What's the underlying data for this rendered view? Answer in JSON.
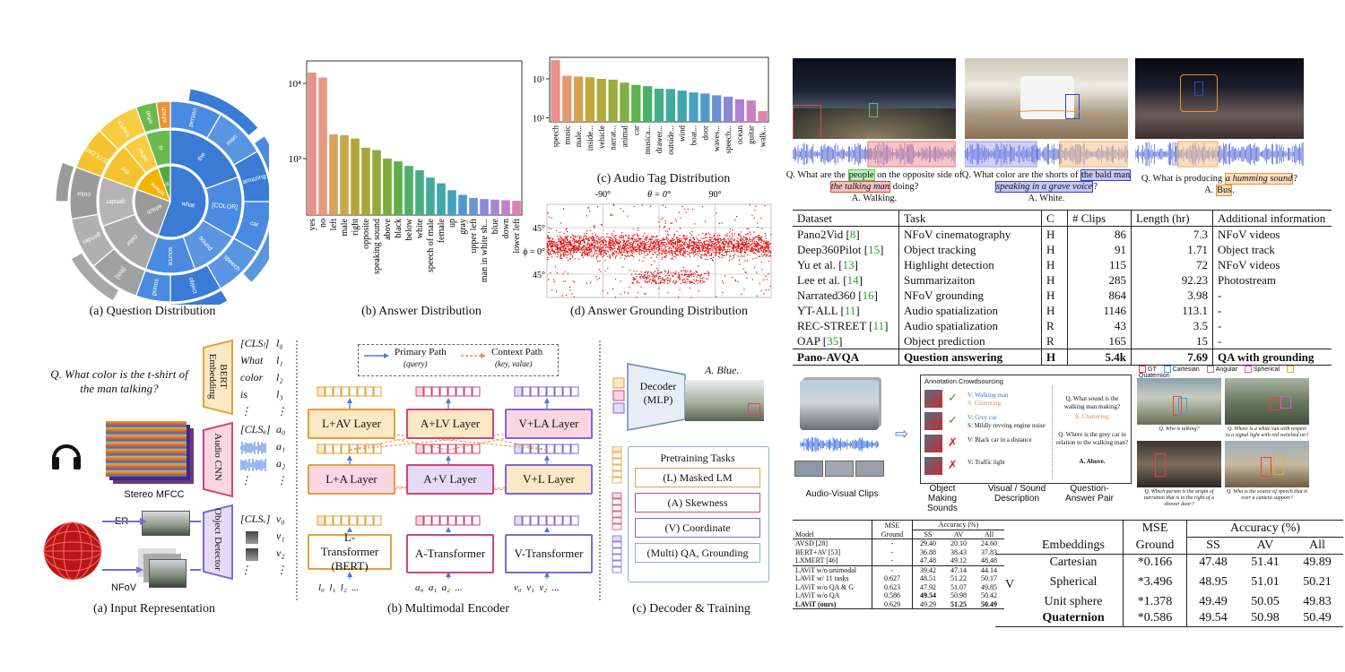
{
  "sunburst": {
    "caption": "(a) Question Distribution",
    "labels": {
      "what": "what",
      "where": "where",
      "which": "which",
      "is": "is",
      "color": "color",
      "the": "the",
      "tag": "[COLOR]",
      "this": "[this]",
      "gender": "gender",
      "object": "object",
      "sound": "sound",
      "source": "source",
      "other": "other",
      "person": "person",
      "man": "man",
      "amazing": "amazing",
      "car": "car",
      "speech": "speech"
    }
  },
  "answer_chart": {
    "caption": "(b) Answer Distribution",
    "chart_data": {
      "type": "bar",
      "scale": "log",
      "y_ticks": [
        "10⁴",
        "10³"
      ],
      "categories": [
        "yes",
        "no",
        "left",
        "male",
        "right",
        "opposite",
        "speaking sound",
        "above",
        "black",
        "below",
        "white",
        "speech of male",
        "female",
        "up",
        "gray",
        "upper left",
        "man in white sh...",
        "blue",
        "down",
        "lower left"
      ],
      "values": [
        14000,
        12000,
        2100,
        2050,
        1850,
        1400,
        1300,
        1000,
        920,
        800,
        700,
        560,
        470,
        380,
        330,
        300,
        290,
        285,
        280,
        275
      ],
      "colors": [
        "#e8908a",
        "#e69a7c",
        "#d9a35e",
        "#c8a64a",
        "#b7a53c",
        "#a8a63a",
        "#95a93a",
        "#7fac3c",
        "#5fb04a",
        "#4cb06a",
        "#45ae85",
        "#42ab98",
        "#40a8aa",
        "#42a3bb",
        "#4c9bcb",
        "#6b93d6",
        "#8b8ad8",
        "#a884d3",
        "#c281c6",
        "#d783b3"
      ]
    }
  },
  "tag_chart": {
    "caption": "(c) Audio Tag Distribution",
    "chart_data": {
      "type": "bar",
      "scale": "log",
      "y_ticks": [
        "10³",
        "10²"
      ],
      "categories": [
        "speech",
        "music",
        "male...",
        "inside...",
        "vehicle",
        "narrat...",
        "animal",
        "car",
        "musica...",
        "drawer...",
        "outside...",
        "wind",
        "boat...",
        "door",
        "waves...",
        "speech...",
        "ocean",
        "guitar",
        "walk..."
      ],
      "values": [
        3000,
        1200,
        1150,
        1100,
        1000,
        950,
        800,
        700,
        650,
        560,
        550,
        500,
        450,
        420,
        380,
        350,
        300,
        280,
        150
      ],
      "colors": [
        "#e8908a",
        "#e39a70",
        "#d5a452",
        "#c4a83e",
        "#aeab3a",
        "#97ae3c",
        "#7db140",
        "#5db44e",
        "#48b26c",
        "#43af86",
        "#41ab99",
        "#40a7ab",
        "#44a1bd",
        "#4e99cc",
        "#6a90d6",
        "#8c88d8",
        "#ab82d2",
        "#c680c3",
        "#dc84ae"
      ]
    }
  },
  "grounding": {
    "caption": "(d) Answer Grounding Distribution",
    "x_labels": [
      "-90°",
      "θ = 0°",
      "90°"
    ],
    "y_labels": [
      "45°",
      "ϕ = 0°",
      "45°"
    ]
  },
  "examples": [
    {
      "q_pre": "Q. What are the ",
      "hl1": "people",
      "q_mid": " on the opposite side of ",
      "hl2": "the talking man",
      "q_post": " doing?",
      "answer": "A. Walking."
    },
    {
      "q_pre": "Q. What color are the shorts of ",
      "hl1": "the bald man",
      "q_mid": " ",
      "hl2": "speaking in a grave voice",
      "q_post": "?",
      "answer": "A. White."
    },
    {
      "q_pre": "Q. What is producing ",
      "hl1": "",
      "q_mid": "",
      "hl2": "a humming sound",
      "q_post": "?",
      "answer_pre": "A. ",
      "answer_hl": "Bus",
      "answer": "."
    }
  ],
  "dataset_table": {
    "headers": [
      "Dataset",
      "Task",
      "C",
      "# Clips",
      "Length (hr)",
      "Additional information"
    ],
    "rows": [
      {
        "name": "Pano2Vid ",
        "ref": "8",
        "task": "NFoV cinematography",
        "c": "H",
        "clips": "86",
        "length": "7.3",
        "info": "NFoV videos"
      },
      {
        "name": "Deep360Pilot ",
        "ref": "15",
        "task": "Object tracking",
        "c": "H",
        "clips": "91",
        "length": "1.71",
        "info": "Object track"
      },
      {
        "name": "Yu et al. ",
        "ref": "13",
        "task": "Highlight detection",
        "c": "H",
        "clips": "115",
        "length": "72",
        "info": "NFoV videos"
      },
      {
        "name": "Lee et al. ",
        "ref": "14",
        "task": "Summarizaiton",
        "c": "H",
        "clips": "285",
        "length": "92.23",
        "info": "Photostream"
      },
      {
        "name": "Narrated360 ",
        "ref": "16",
        "task": "NFoV grounding",
        "c": "H",
        "clips": "864",
        "length": "3.98",
        "info": "-"
      },
      {
        "name": "YT-ALL ",
        "ref": "11",
        "task": "Audio spatialization",
        "c": "H",
        "clips": "1146",
        "length": "113.1",
        "info": "-"
      },
      {
        "name": "REC-STREET ",
        "ref": "11",
        "task": "Audio spatialization",
        "c": "R",
        "clips": "43",
        "length": "3.5",
        "info": "-"
      },
      {
        "name": "OAP ",
        "ref": "35",
        "task": "Object prediction",
        "c": "R",
        "clips": "165",
        "length": "15",
        "info": "-"
      }
    ],
    "last": {
      "name": "Pano-AVQA",
      "task": "Question answering",
      "c": "H",
      "clips": "5.4k",
      "length": "7.69",
      "info": "QA with grounding"
    }
  },
  "input_rep": {
    "caption": "(a) Input Representation",
    "question": "Q. What color is the t-shirt of the man talking?",
    "bert": "BERT Embedding",
    "audio_cnn": "Audio CNN",
    "object_detector": "Object Detector",
    "mfcc": "Stereo MFCC",
    "er": "ER",
    "nfov": "NFoV",
    "tokens_l": [
      "[CLSₗ]",
      "What",
      "color",
      "is",
      "⋮"
    ],
    "idx_l": [
      "l₀",
      "l₁",
      "l₂",
      "l₃",
      "⋮"
    ],
    "tokens_a": [
      "[CLSₐ]",
      "",
      "",
      "⋮"
    ],
    "idx_a": [
      "a₀",
      "a₁",
      "a₂",
      "⋮"
    ],
    "tokens_v": [
      "[CLSᵥ]",
      "",
      "",
      "⋮"
    ],
    "idx_v": [
      "v₀",
      "v₁",
      "v₂",
      "⋮"
    ]
  },
  "encoder": {
    "caption": "(b) Multimodal Encoder",
    "primary": "Primary Path",
    "primary_sub": "(query)",
    "context": "Context Path",
    "context_sub": "(key, value)",
    "top_layers": [
      "L+AV Layer",
      "A+LV Layer",
      "V+LA Layer"
    ],
    "mid_layers": [
      "L+A Layer",
      "A+V Layer",
      "V+L Layer"
    ],
    "l_transformer": "L-Transformer (BERT)",
    "a_transformer": "A-Transformer",
    "v_transformer": "V-Transformer",
    "inputs_l": "l₀  l₁  l₂  ...",
    "inputs_a": "a₀  a₁  a₂  ...",
    "inputs_v": "v₀  v₁  v₂  ..."
  },
  "decoder": {
    "caption": "(c) Decoder & Training",
    "decoder": "Decoder (MLP)",
    "answer": "A. Blue.",
    "pretraining": "Pretraining Tasks",
    "tasks": [
      "(L) Masked LM",
      "(A) Skewness",
      "(V) Coordinate",
      "(Multi) QA, Grounding"
    ]
  },
  "pipeline": {
    "clips": "Audio-Visual Clips",
    "crowd": "Annotation Crowdsourcing",
    "items": [
      {
        "v": "V: Walking man",
        "s": "S: Chattering"
      },
      {
        "v": "V: Grey car",
        "s": "S: Mildly revving engine noise"
      },
      {
        "v": "V: Black car in a distance",
        "s": ""
      },
      {
        "v": "V: Traffic light",
        "s": ""
      }
    ],
    "qa1_q": "Q. What sound is the walking man making?",
    "qa1_a": "A. Chattering.",
    "qa2_q": "Q. Where is the grey car in relation to the walking man?",
    "qa2_a": "A. Above.",
    "col1": "Object Making Sounds",
    "col2": "Visual / Sound Description",
    "col3": "Question-Answer Pair"
  },
  "grid_figure": {
    "legend": [
      "GT",
      "Cartesian",
      "Angular",
      "Spherical",
      "Quaternion"
    ],
    "legend_colors": [
      "#e0463c",
      "#3aa1d8",
      "#8c8c8c",
      "#d35fd3",
      "#e8a940"
    ],
    "captions": [
      "Q. Who is talking?",
      "Q. Where is a white van with respect to a signal light with red switched on?",
      "Q. Which person is the origin of narration that is to the right of a shower door?",
      "Q. Who is the source of speech that is over a camera support?"
    ]
  },
  "small_table": {
    "headers": [
      "Model",
      "MSE",
      "Accuracy (%)"
    ],
    "sub": [
      "",
      "Ground",
      "SS",
      "AV",
      "All"
    ],
    "rows": [
      [
        "AVSD [28]",
        "-",
        "29.40",
        "20.10",
        "24.60"
      ],
      [
        "BERT+AV [53]",
        "-",
        "36.88",
        "38.43",
        "37.83"
      ],
      [
        "LXMERT [46]",
        "-",
        "47.48",
        "49.12",
        "48.48"
      ],
      [
        "LAViT w/o unimodal",
        "-",
        "39.42",
        "47.14",
        "44.14"
      ],
      [
        "LAViT w/ 11 tasks",
        "0.627",
        "48.51",
        "51.22",
        "50.17"
      ],
      [
        "LAViT w/o QA & G",
        "0.623",
        "47.92",
        "51.07",
        "49.85"
      ],
      [
        "LAViT w/o QA",
        "0.586",
        "49.54",
        "50.98",
        "50.42"
      ],
      [
        "LAViT (ours)",
        "0.629",
        "49.29",
        "51.25",
        "50.49"
      ]
    ]
  },
  "emb_table": {
    "headers": [
      "MSE",
      "Accuracy (%)"
    ],
    "sub": [
      "Embeddings",
      "Ground",
      "SS",
      "AV",
      "All"
    ],
    "v": "V",
    "rows": [
      [
        "Cartesian",
        "*0.166",
        "47.48",
        "51.41",
        "49.89"
      ],
      [
        "Spherical",
        "*3.496",
        "48.95",
        "51.01",
        "50.21"
      ],
      [
        "Unit sphere",
        "*1.378",
        "49.49",
        "50.05",
        "49.83"
      ],
      [
        "Quaternion",
        "*0.586",
        "49.54",
        "50.98",
        "50.49"
      ]
    ]
  }
}
